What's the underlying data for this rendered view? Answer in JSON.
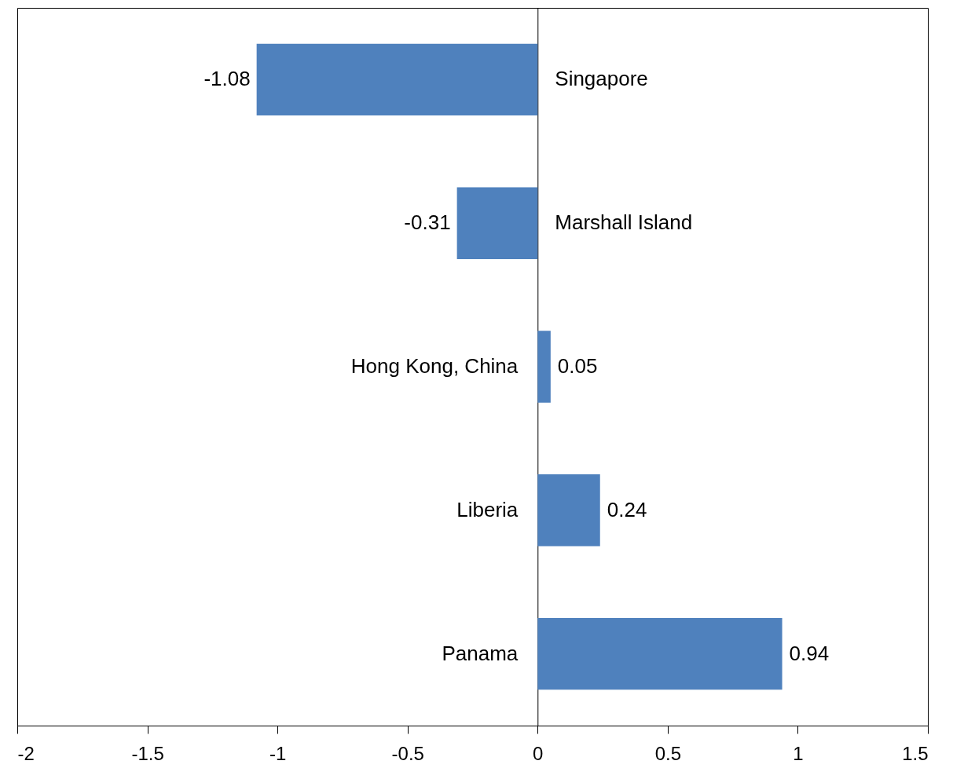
{
  "chart_data": {
    "type": "bar",
    "orientation": "horizontal",
    "categories": [
      "Singapore",
      "Marshall Island",
      "Hong Kong, China",
      "Liberia",
      "Panama"
    ],
    "values": [
      -1.08,
      -0.31,
      0.05,
      0.24,
      0.94
    ],
    "color": "#4f81bd",
    "xlim": [
      -2,
      1.5
    ],
    "xticks": [
      -2,
      -1.5,
      -1,
      -0.5,
      0,
      0.5,
      1,
      1.5
    ],
    "data_labels": true,
    "grid": false
  }
}
